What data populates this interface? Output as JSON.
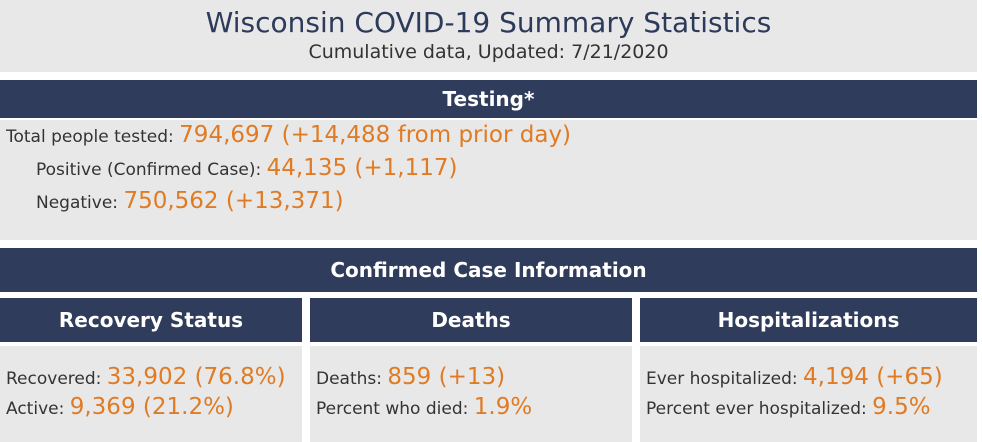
{
  "header": {
    "title": "Wisconsin COVID-19 Summary Statistics",
    "subtitle": "Cumulative data, Updated: 7/21/2020"
  },
  "testing": {
    "title": "Testing*",
    "rows": [
      {
        "label": "Total people tested:",
        "value": "794,697 (+14,488 from prior day)"
      },
      {
        "label": "Positive (Confirmed Case):",
        "value": "44,135 (+1,117)"
      },
      {
        "label": "Negative:",
        "value": "750,562 (+13,371)"
      }
    ]
  },
  "cases": {
    "title": "Confirmed Case Information",
    "panels": [
      {
        "title": "Recovery Status",
        "rows": [
          {
            "label": "Recovered:",
            "value": "33,902 (76.8%)"
          },
          {
            "label": "Active:",
            "value": "9,369 (21.2%)"
          }
        ]
      },
      {
        "title": "Deaths",
        "rows": [
          {
            "label": "Deaths:",
            "value": "859 (+13)"
          },
          {
            "label": "Percent who died:",
            "value": "1.9%"
          }
        ]
      },
      {
        "title": "Hospitalizations",
        "rows": [
          {
            "label": "Ever hospitalized:",
            "value": "4,194 (+65)"
          },
          {
            "label": "Percent ever hospitalized:",
            "value": "9.5%"
          }
        ]
      }
    ]
  }
}
